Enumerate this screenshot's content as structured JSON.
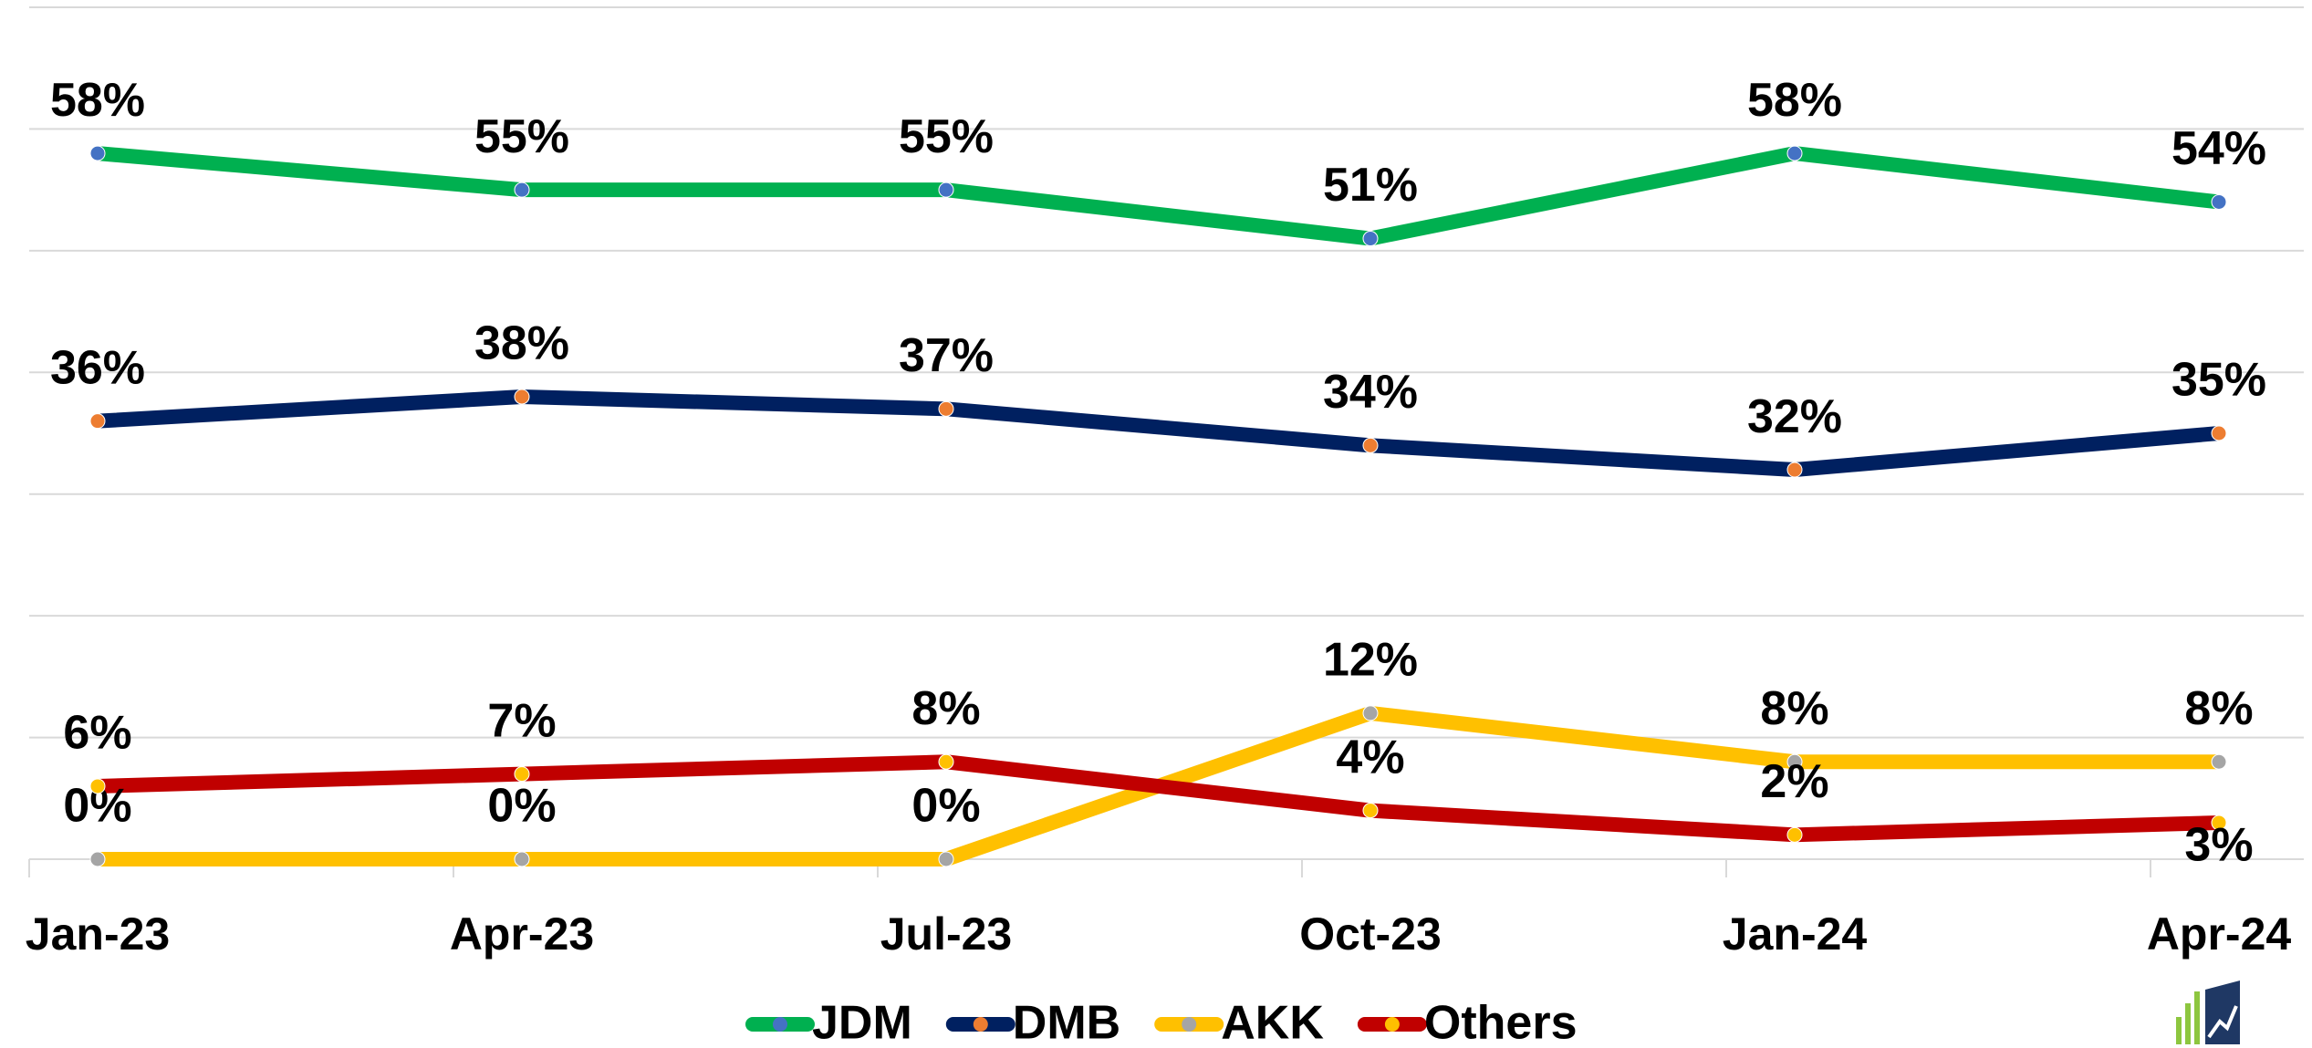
{
  "chart_data": {
    "type": "line",
    "categories": [
      "Jan-23",
      "Apr-23",
      "Jul-23",
      "Oct-23",
      "Jan-24",
      "Apr-24"
    ],
    "series": [
      {
        "name": "JDM",
        "color": "#00b050",
        "marker_color": "#4472c4",
        "values": [
          58,
          55,
          55,
          51,
          58,
          54
        ],
        "value_labels": [
          "58%",
          "55%",
          "55%",
          "51%",
          "58%",
          "54%"
        ]
      },
      {
        "name": "DMB",
        "color": "#002060",
        "marker_color": "#ed7d31",
        "values": [
          36,
          38,
          37,
          34,
          32,
          35
        ],
        "value_labels": [
          "36%",
          "38%",
          "37%",
          "34%",
          "32%",
          "35%"
        ]
      },
      {
        "name": "AKK",
        "color": "#ffc000",
        "marker_color": "#a5a5a5",
        "values": [
          0,
          0,
          0,
          12,
          8,
          8
        ],
        "value_labels": [
          "0%",
          "0%",
          "0%",
          "12%",
          "8%",
          "8%"
        ]
      },
      {
        "name": "Others",
        "color": "#c00000",
        "marker_color": "#ffc000",
        "values": [
          6,
          7,
          8,
          4,
          2,
          3
        ],
        "value_labels": [
          "6%",
          "7%",
          "8%",
          "4%",
          "2%",
          "3%"
        ]
      }
    ],
    "ylim": [
      0,
      70
    ],
    "yticks": [
      0,
      10,
      20,
      30,
      40,
      50,
      60,
      70
    ],
    "grid": true,
    "legend": "bottom"
  }
}
